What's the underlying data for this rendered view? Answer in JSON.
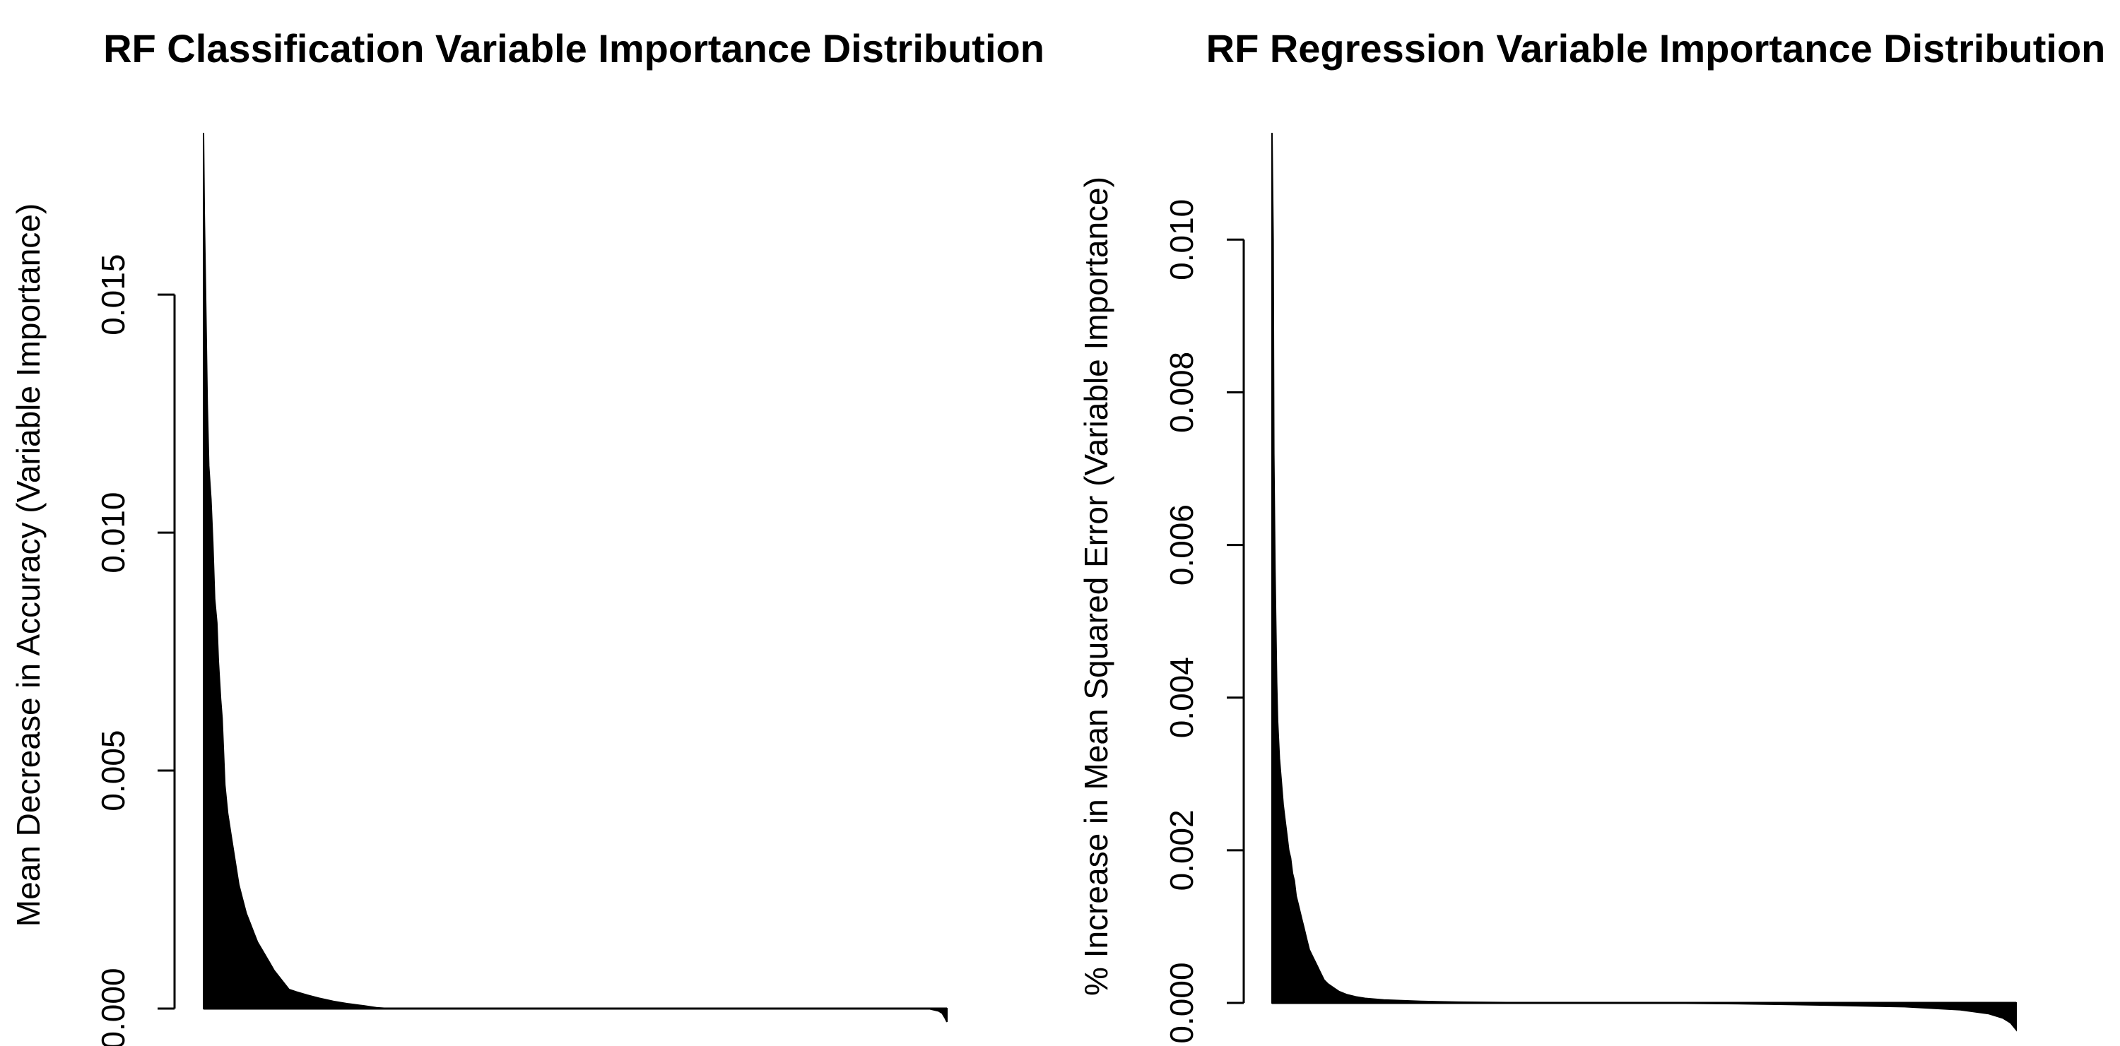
{
  "chart_data": [
    {
      "type": "area",
      "title": "RF Classification Variable Importance Distribution",
      "xlabel": "",
      "ylabel": "Mean Decrease in Accuracy (Variable Importance)",
      "ylim": [
        0,
        0.0184
      ],
      "yticks": [
        "0.000",
        "0.005",
        "0.010",
        "0.015"
      ],
      "ytick_values": [
        0,
        0.005,
        0.01,
        0.015
      ],
      "grid": false,
      "n_variables": 4000,
      "sorted": "decreasing",
      "fill": "#000000",
      "profile_index": [
        0,
        4,
        10,
        20,
        28,
        40,
        50,
        60,
        72,
        80,
        92,
        100,
        115,
        130,
        150,
        170,
        190,
        210,
        230,
        250,
        270,
        290,
        320,
        350,
        380,
        420,
        460,
        500,
        560,
        620,
        700,
        780,
        860,
        930,
        1000,
        1200,
        2000,
        3000,
        3900,
        3955,
        3975,
        3990,
        4000
      ],
      "profile_values": [
        0.0184,
        0.0167,
        0.0153,
        0.0127,
        0.0114,
        0.0107,
        0.0098,
        0.0086,
        0.0081,
        0.0073,
        0.0065,
        0.0061,
        0.0047,
        0.0041,
        0.0036,
        0.0031,
        0.0026,
        0.0023,
        0.002,
        0.0018,
        0.0016,
        0.0014,
        0.0012,
        0.001,
        0.0008,
        0.0006,
        0.0004,
        0.00035,
        0.00028,
        0.00022,
        0.00015,
        0.0001,
        6e-05,
        2e-05,
        0.0,
        0.0,
        0.0,
        0.0,
        0.0,
        -5e-05,
        -0.0001,
        -0.0002,
        -0.00028
      ]
    },
    {
      "type": "area",
      "title": "RF Regression Variable Importance Distribution",
      "xlabel": "",
      "ylabel": "% Increase in Mean Squared Error (Variable Importance)",
      "ylim": [
        0,
        0.0114
      ],
      "yticks": [
        "0.000",
        "0.002",
        "0.004",
        "0.006",
        "0.008",
        "0.010"
      ],
      "ytick_values": [
        0,
        0.002,
        0.004,
        0.006,
        0.008,
        0.01
      ],
      "grid": false,
      "n_variables": 4000,
      "sorted": "decreasing",
      "fill": "#000000",
      "profile_index": [
        0,
        6,
        10,
        16,
        20,
        25,
        30,
        40,
        50,
        60,
        70,
        80,
        90,
        100,
        110,
        120,
        130,
        140,
        150,
        160,
        170,
        180,
        190,
        200,
        220,
        240,
        260,
        280,
        300,
        330,
        360,
        400,
        450,
        500,
        600,
        800,
        1000,
        1500,
        2000,
        2500,
        3000,
        3400,
        3700,
        3850,
        3930,
        3970,
        4000
      ],
      "profile_values": [
        0.0114,
        0.01,
        0.0072,
        0.0057,
        0.005,
        0.0042,
        0.0037,
        0.0032,
        0.0029,
        0.0026,
        0.0024,
        0.0022,
        0.002,
        0.0019,
        0.0017,
        0.0016,
        0.0014,
        0.0013,
        0.0012,
        0.0011,
        0.001,
        0.0009,
        0.0008,
        0.0007,
        0.0006,
        0.0005,
        0.0004,
        0.0003,
        0.00025,
        0.0002,
        0.00015,
        0.00011,
        8e-05,
        6e-05,
        4e-05,
        2e-05,
        1e-05,
        0.0,
        0.0,
        -1e-05,
        -3e-05,
        -5e-05,
        -9e-05,
        -0.00014,
        -0.0002,
        -0.00026,
        -0.00035
      ]
    }
  ]
}
